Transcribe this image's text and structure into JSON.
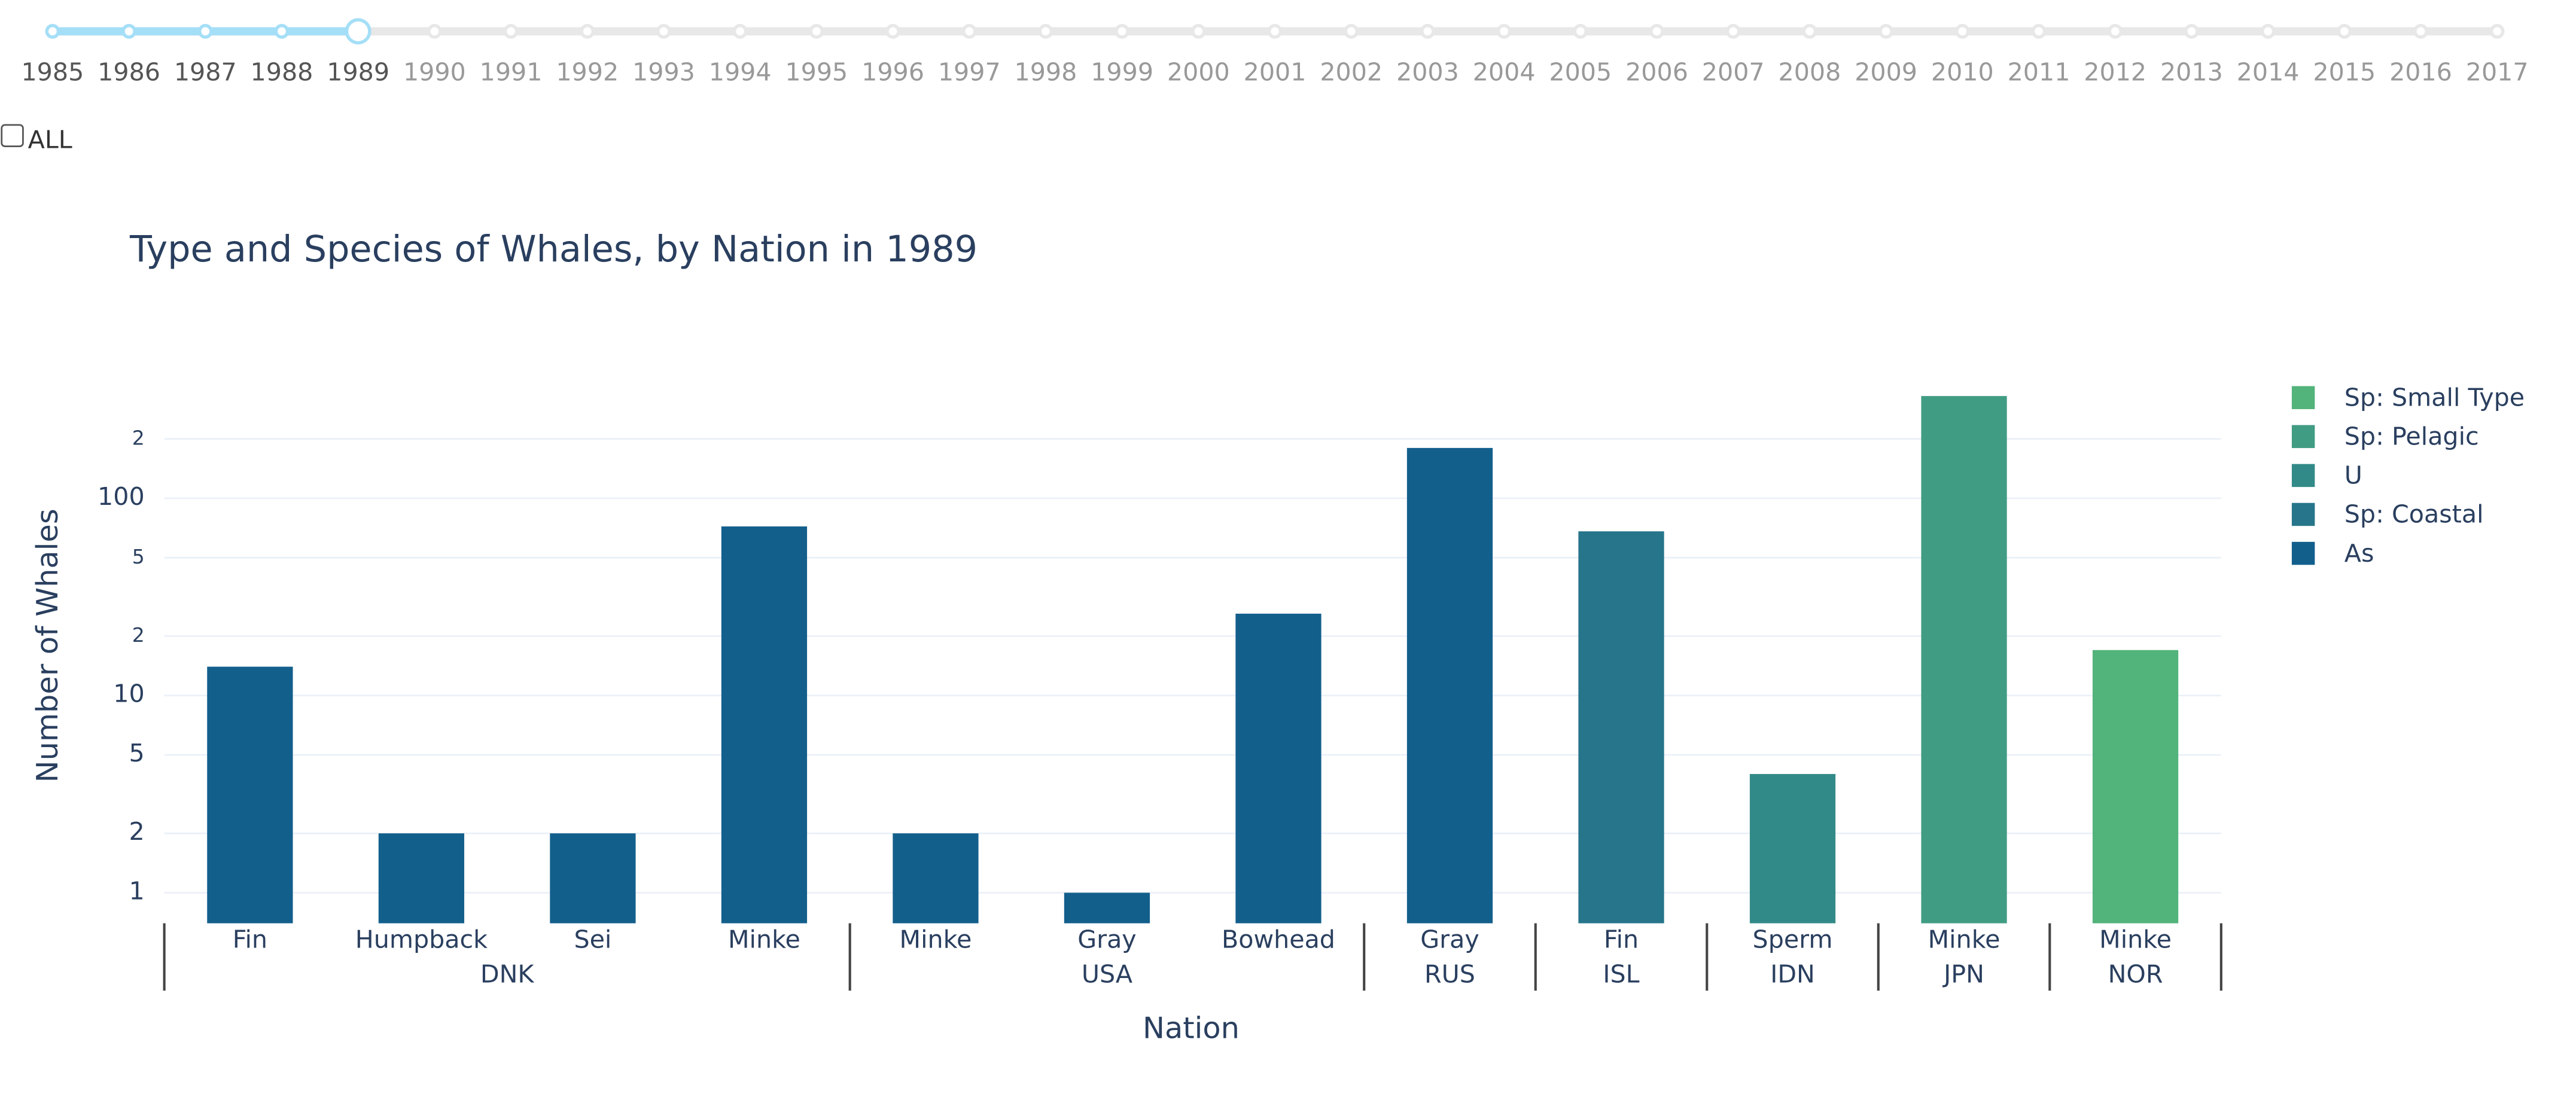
{
  "slider": {
    "years": [
      1985,
      1986,
      1987,
      1988,
      1989,
      1990,
      1991,
      1992,
      1993,
      1994,
      1995,
      1996,
      1997,
      1998,
      1999,
      2000,
      2001,
      2002,
      2003,
      2004,
      2005,
      2006,
      2007,
      2008,
      2009,
      2010,
      2011,
      2012,
      2013,
      2014,
      2015,
      2016,
      2017
    ],
    "selected": 1989
  },
  "checkbox_label": "ALL",
  "chart_data": {
    "type": "bar",
    "title": "Type and Species of Whales, by Nation in 1989",
    "x_label": "Nation",
    "y_label": "Number of Whales",
    "groups": [
      {
        "name": "DNK",
        "categories": [
          "Fin",
          "Humpback",
          "Sei",
          "Minke"
        ]
      },
      {
        "name": "USA",
        "categories": [
          "Minke",
          "Gray",
          "Bowhead"
        ]
      },
      {
        "name": "RUS",
        "categories": [
          "Gray"
        ]
      },
      {
        "name": "ISL",
        "categories": [
          "Fin"
        ]
      },
      {
        "name": "IDN",
        "categories": [
          "Sperm"
        ]
      },
      {
        "name": "JPN",
        "categories": [
          "Minke"
        ]
      },
      {
        "name": "NOR",
        "categories": [
          "Minke"
        ]
      }
    ],
    "series": [
      {
        "name": "Sp: Small Type",
        "color": "#52b37b",
        "values": [
          null,
          null,
          null,
          null,
          null,
          null,
          null,
          null,
          null,
          null,
          null,
          17
        ]
      },
      {
        "name": "Sp: Pelagic",
        "color": "#419c84",
        "values": [
          null,
          null,
          null,
          null,
          null,
          null,
          null,
          null,
          null,
          null,
          330,
          null
        ]
      },
      {
        "name": "U",
        "color": "#328a88",
        "values": [
          null,
          null,
          null,
          null,
          null,
          null,
          null,
          null,
          null,
          4,
          null,
          null
        ]
      },
      {
        "name": "Sp: Coastal",
        "color": "#26758a",
        "values": [
          null,
          null,
          null,
          null,
          null,
          null,
          null,
          null,
          68,
          null,
          null,
          null
        ]
      },
      {
        "name": "As",
        "color": "#135f8c",
        "values": [
          14,
          2,
          2,
          72,
          2,
          1,
          26,
          180,
          null,
          null,
          null,
          null
        ]
      }
    ],
    "log_y": true,
    "ylim": [
      0.7,
      400
    ],
    "yticks": [
      1,
      2,
      5,
      10,
      {
        "value": 20,
        "label": "2"
      },
      {
        "value": 50,
        "label": "5"
      },
      100,
      {
        "value": 200,
        "label": "2"
      }
    ],
    "grid": true
  }
}
